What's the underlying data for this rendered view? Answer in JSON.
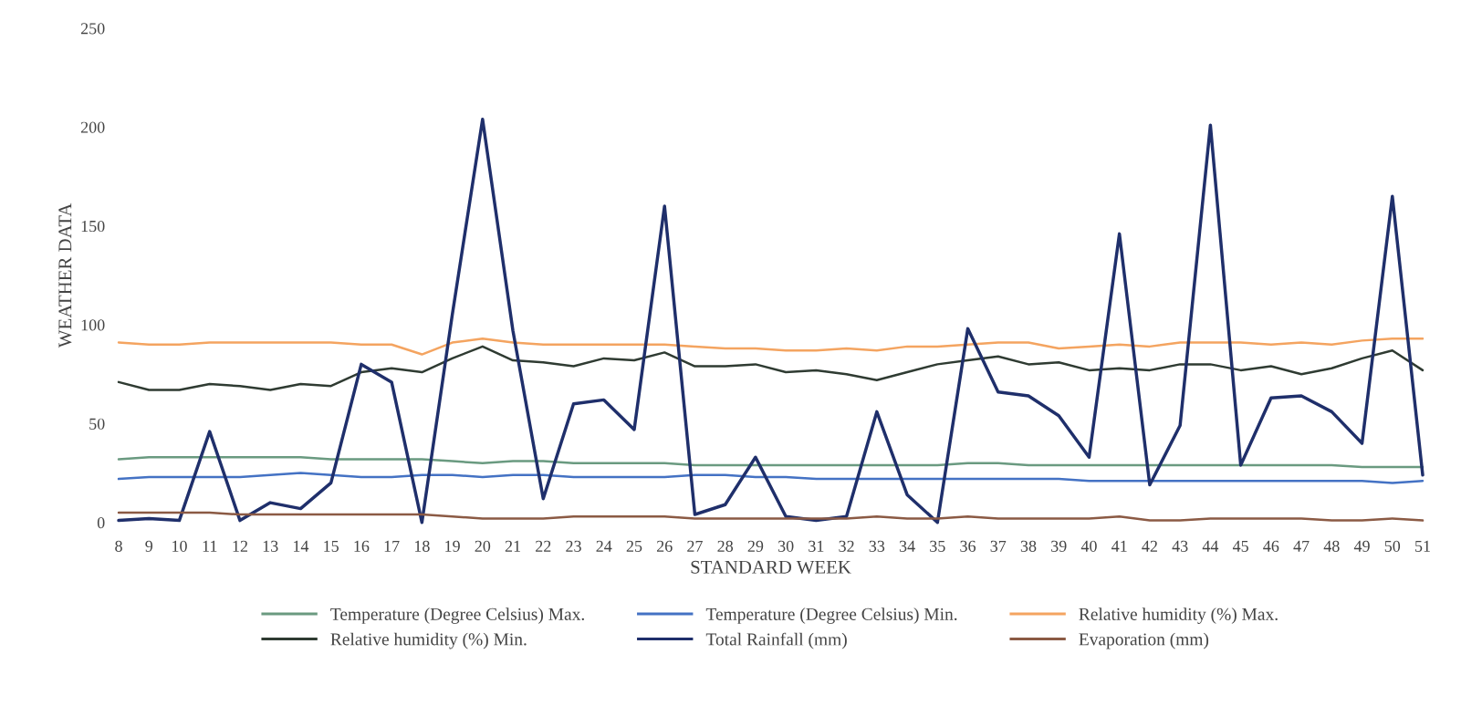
{
  "chart_data": {
    "type": "line",
    "xlabel": "STANDARD WEEK",
    "ylabel": "WEATHER DATA",
    "categories": [
      "8",
      "9",
      "10",
      "11",
      "12",
      "13",
      "14",
      "15",
      "16",
      "17",
      "18",
      "19",
      "20",
      "21",
      "22",
      "23",
      "24",
      "25",
      "26",
      "27",
      "28",
      "29",
      "30",
      "31",
      "32",
      "33",
      "34",
      "35",
      "36",
      "37",
      "38",
      "39",
      "40",
      "41",
      "42",
      "43",
      "44",
      "45",
      "46",
      "47",
      "48",
      "49",
      "50",
      "51"
    ],
    "ylim": [
      0,
      250
    ],
    "yticks": [
      0,
      50,
      100,
      150,
      200,
      250
    ],
    "grid": false,
    "legend": "bottom",
    "marker": "none",
    "line_style": "solid",
    "series": [
      {
        "name": "Temperature (Degree Celsius) Max.",
        "color": "#6a9a80",
        "values": [
          32,
          33,
          33,
          33,
          33,
          33,
          33,
          32,
          32,
          32,
          32,
          31,
          30,
          31,
          31,
          30,
          30,
          30,
          30,
          29,
          29,
          29,
          29,
          29,
          29,
          29,
          29,
          29,
          30,
          30,
          29,
          29,
          29,
          29,
          29,
          29,
          29,
          29,
          29,
          29,
          29,
          28,
          28,
          28
        ]
      },
      {
        "name": "Temperature (Degree Celsius) Min.",
        "color": "#4472c4",
        "values": [
          22,
          23,
          23,
          23,
          23,
          24,
          25,
          24,
          23,
          23,
          24,
          24,
          23,
          24,
          24,
          23,
          23,
          23,
          23,
          24,
          24,
          23,
          23,
          22,
          22,
          22,
          22,
          22,
          22,
          22,
          22,
          22,
          21,
          21,
          21,
          21,
          21,
          21,
          21,
          21,
          21,
          21,
          20,
          21
        ]
      },
      {
        "name": "Relative humidity (%) Max.",
        "color": "#f4a460",
        "values": [
          91,
          90,
          90,
          91,
          91,
          91,
          91,
          91,
          90,
          90,
          85,
          91,
          93,
          91,
          90,
          90,
          90,
          90,
          90,
          89,
          88,
          88,
          87,
          87,
          88,
          87,
          89,
          89,
          90,
          91,
          91,
          88,
          89,
          90,
          89,
          91,
          91,
          91,
          90,
          91,
          90,
          92,
          93,
          93
        ]
      },
      {
        "name": "Relative humidity (%) Min.",
        "color": "#2f3b32",
        "values": [
          71,
          67,
          67,
          70,
          69,
          67,
          70,
          69,
          76,
          78,
          76,
          83,
          89,
          82,
          81,
          79,
          83,
          82,
          86,
          79,
          79,
          80,
          76,
          77,
          75,
          72,
          76,
          80,
          82,
          84,
          80,
          81,
          77,
          78,
          77,
          80,
          80,
          77,
          79,
          75,
          78,
          83,
          87,
          77
        ]
      },
      {
        "name": "Total Rainfall (mm)",
        "color": "#1f2f6b",
        "values": [
          1,
          2,
          1,
          46,
          1,
          10,
          7,
          20,
          80,
          71,
          0,
          105,
          204,
          97,
          12,
          60,
          62,
          47,
          160,
          4,
          9,
          33,
          3,
          1,
          3,
          56,
          14,
          0,
          98,
          66,
          64,
          54,
          33,
          146,
          19,
          49,
          201,
          29,
          63,
          64,
          56,
          40,
          165,
          24
        ]
      },
      {
        "name": "Evaporation (mm)",
        "color": "#8b5a44",
        "values": [
          5,
          5,
          5,
          5,
          4,
          4,
          4,
          4,
          4,
          4,
          4,
          3,
          2,
          2,
          2,
          3,
          3,
          3,
          3,
          2,
          2,
          2,
          2,
          2,
          2,
          3,
          2,
          2,
          3,
          2,
          2,
          2,
          2,
          3,
          1,
          1,
          2,
          2,
          2,
          2,
          1,
          1,
          2,
          1
        ]
      }
    ]
  }
}
